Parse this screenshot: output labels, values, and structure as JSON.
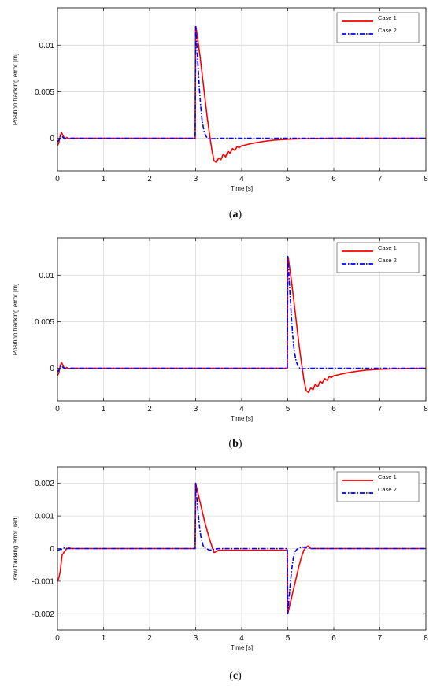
{
  "chart_data": [
    {
      "type": "line",
      "caption": "(a)",
      "caption_letter": "a",
      "xlabel": "Time [s]",
      "ylabel": "Position tracking error [m]",
      "xlim": [
        0,
        8
      ],
      "ylim": [
        -0.0035,
        0.014
      ],
      "xticks": [
        0,
        1,
        2,
        3,
        4,
        5,
        6,
        7,
        8
      ],
      "yticks": [
        0,
        0.005,
        0.01
      ],
      "ytick_labels": [
        "0",
        "0.005",
        "0.01"
      ],
      "grid": true,
      "legend": "top-right",
      "series": [
        {
          "name": "Case 1",
          "color": "#ff0000",
          "style": "solid",
          "x": [
            0,
            0.03,
            0.06,
            0.09,
            0.12,
            0.16,
            0.2,
            0.25,
            0.3,
            0.35,
            0.45,
            0.6,
            1.0,
            2.0,
            2.99,
            3.0,
            3.01,
            3.05,
            3.1,
            3.15,
            3.2,
            3.25,
            3.3,
            3.35,
            3.4,
            3.45,
            3.5,
            3.55,
            3.6,
            3.65,
            3.7,
            3.75,
            3.8,
            3.85,
            3.9,
            3.95,
            4.0,
            4.1,
            4.2,
            4.3,
            4.4,
            4.5,
            4.7,
            5.0,
            5.3,
            5.6,
            6.0,
            7.0,
            8.0
          ],
          "y": [
            -0.0008,
            -0.0005,
            0.0003,
            0.0006,
            0.0003,
            -0.0001,
            0.0001,
            -5e-05,
            2e-05,
            0,
            0,
            0,
            0,
            0,
            0,
            0.012,
            0.0119,
            0.0105,
            0.0086,
            0.0065,
            0.0044,
            0.0023,
            0.0005,
            -0.0012,
            -0.0024,
            -0.0026,
            -0.0021,
            -0.0023,
            -0.0017,
            -0.002,
            -0.0014,
            -0.0016,
            -0.0011,
            -0.0013,
            -0.0009,
            -0.001,
            -0.0008,
            -0.0007,
            -0.00058,
            -0.00048,
            -0.0004,
            -0.00032,
            -0.0002,
            -0.0001,
            -5e-05,
            -2e-05,
            0,
            0,
            0
          ]
        },
        {
          "name": "Case 2",
          "color": "#0000ff",
          "style": "dashdot",
          "x": [
            0,
            0.03,
            0.06,
            0.09,
            0.12,
            0.16,
            0.2,
            0.3,
            0.5,
            1.0,
            2.0,
            2.99,
            3.0,
            3.02,
            3.05,
            3.08,
            3.11,
            3.14,
            3.18,
            3.22,
            3.27,
            3.35,
            3.5,
            4.0,
            5.0,
            6.0,
            7.0,
            8.0
          ],
          "y": [
            -0.0004,
            -0.0002,
            0.0002,
            0.0003,
            0.0001,
            -5e-05,
            0,
            0,
            0,
            0,
            0,
            0,
            0.012,
            0.0105,
            0.0079,
            0.0054,
            0.0034,
            0.0019,
            0.0008,
            0.00025,
            -5e-05,
            -5e-05,
            0,
            0,
            0,
            0,
            0,
            0
          ]
        }
      ]
    },
    {
      "type": "line",
      "caption": "(b)",
      "caption_letter": "b",
      "xlabel": "Time [s]",
      "ylabel": "Position tracking error [m]",
      "xlim": [
        0,
        8
      ],
      "ylim": [
        -0.0035,
        0.014
      ],
      "xticks": [
        0,
        1,
        2,
        3,
        4,
        5,
        6,
        7,
        8
      ],
      "yticks": [
        0,
        0.005,
        0.01
      ],
      "ytick_labels": [
        "0",
        "0.005",
        "0.01"
      ],
      "grid": true,
      "legend": "top-right",
      "series": [
        {
          "name": "Case 1",
          "color": "#ff0000",
          "style": "solid",
          "x": [
            0,
            0.03,
            0.06,
            0.09,
            0.12,
            0.16,
            0.2,
            0.25,
            0.3,
            0.35,
            0.45,
            0.6,
            1.0,
            2.0,
            3.0,
            4.0,
            4.99,
            5.0,
            5.01,
            5.05,
            5.1,
            5.15,
            5.2,
            5.25,
            5.3,
            5.35,
            5.4,
            5.45,
            5.5,
            5.55,
            5.6,
            5.65,
            5.7,
            5.75,
            5.8,
            5.85,
            5.9,
            5.95,
            6.0,
            6.1,
            6.2,
            6.3,
            6.4,
            6.5,
            6.7,
            7.0,
            7.3,
            7.6,
            8.0
          ],
          "y": [
            -0.0008,
            -0.0005,
            0.0003,
            0.0006,
            0.0003,
            -0.0001,
            0.0001,
            -5e-05,
            2e-05,
            0,
            0,
            0,
            0,
            0,
            0,
            0,
            0,
            0.012,
            0.0119,
            0.0105,
            0.0086,
            0.0065,
            0.0044,
            0.0023,
            0.0005,
            -0.0012,
            -0.0024,
            -0.0026,
            -0.0021,
            -0.0023,
            -0.0017,
            -0.002,
            -0.0014,
            -0.0016,
            -0.0011,
            -0.0013,
            -0.0009,
            -0.001,
            -0.0008,
            -0.0007,
            -0.00058,
            -0.00048,
            -0.0004,
            -0.00032,
            -0.0002,
            -0.0001,
            -5e-05,
            -2e-05,
            0
          ]
        },
        {
          "name": "Case 2",
          "color": "#0000ff",
          "style": "dashdot",
          "x": [
            0,
            0.03,
            0.06,
            0.09,
            0.12,
            0.16,
            0.2,
            0.3,
            0.5,
            1.0,
            2.0,
            3.0,
            4.0,
            4.99,
            5.0,
            5.02,
            5.05,
            5.08,
            5.11,
            5.14,
            5.18,
            5.22,
            5.27,
            5.35,
            5.5,
            6.0,
            7.0,
            8.0
          ],
          "y": [
            -0.0004,
            -0.0002,
            0.0002,
            0.0003,
            0.0001,
            -5e-05,
            0,
            0,
            0,
            0,
            0,
            0,
            0,
            0,
            0.012,
            0.0105,
            0.0079,
            0.0054,
            0.0034,
            0.0019,
            0.0008,
            0.00025,
            -5e-05,
            -5e-05,
            0,
            0,
            0,
            0
          ]
        }
      ]
    },
    {
      "type": "line",
      "caption": "(c)",
      "caption_letter": "c",
      "xlabel": "Time [s]",
      "ylabel": "Yaw tracking error [rad]",
      "xlim": [
        0,
        8
      ],
      "ylim": [
        -0.0025,
        0.0025
      ],
      "xticks": [
        0,
        1,
        2,
        3,
        4,
        5,
        6,
        7,
        8
      ],
      "yticks": [
        -0.002,
        -0.001,
        0,
        0.001,
        0.002
      ],
      "ytick_labels": [
        "-0.002",
        "-0.001",
        "0",
        "0.001",
        "0.002"
      ],
      "grid": true,
      "legend": "top-right",
      "series": [
        {
          "name": "Case 1",
          "color": "#ff0000",
          "style": "solid",
          "x": [
            0,
            0.03,
            0.06,
            0.1,
            0.15,
            0.2,
            0.25,
            0.3,
            0.4,
            1.0,
            2.0,
            2.99,
            3.0,
            3.05,
            3.1,
            3.15,
            3.2,
            3.25,
            3.3,
            3.35,
            3.4,
            3.45,
            3.5,
            4.0,
            4.5,
            4.99,
            5.0,
            5.05,
            5.1,
            5.15,
            5.2,
            5.25,
            5.3,
            5.35,
            5.4,
            5.45,
            5.5,
            6.0,
            7.0,
            8.0
          ],
          "y": [
            -0.001,
            -0.0009,
            -0.0007,
            -0.0002,
            -0.0001,
            0,
            2e-05,
            0,
            0,
            0,
            0,
            0,
            0.002,
            0.0017,
            0.0014,
            0.0011,
            0.0008,
            0.00055,
            0.0003,
            8e-05,
            -0.00012,
            -0.0001,
            -5e-05,
            -5e-05,
            -5e-05,
            -5e-05,
            -0.002,
            -0.0017,
            -0.0014,
            -0.0011,
            -0.0008,
            -0.0005,
            -0.00025,
            -5e-05,
            5e-05,
            8e-05,
            0,
            0,
            0,
            0
          ]
        },
        {
          "name": "Case 2",
          "color": "#0000ff",
          "style": "dashdot",
          "x": [
            0,
            0.05,
            0.1,
            0.15,
            0.2,
            0.3,
            1.0,
            2.0,
            2.99,
            3.0,
            3.03,
            3.06,
            3.09,
            3.12,
            3.16,
            3.2,
            3.3,
            3.5,
            4.0,
            4.99,
            5.0,
            5.03,
            5.06,
            5.09,
            5.12,
            5.16,
            5.2,
            5.3,
            5.5,
            6.0,
            7.0,
            8.0
          ],
          "y": [
            -5e-05,
            -3e-05,
            -2e-05,
            2e-05,
            0,
            0,
            0,
            0,
            0,
            0.002,
            0.0015,
            0.001,
            0.0006,
            0.0003,
            0.0001,
            2e-05,
            -5e-05,
            0,
            0,
            0,
            -0.002,
            -0.0015,
            -0.001,
            -0.0006,
            -0.0003,
            -0.0001,
            -2e-05,
            5e-05,
            0,
            0,
            0,
            0
          ]
        }
      ]
    }
  ]
}
